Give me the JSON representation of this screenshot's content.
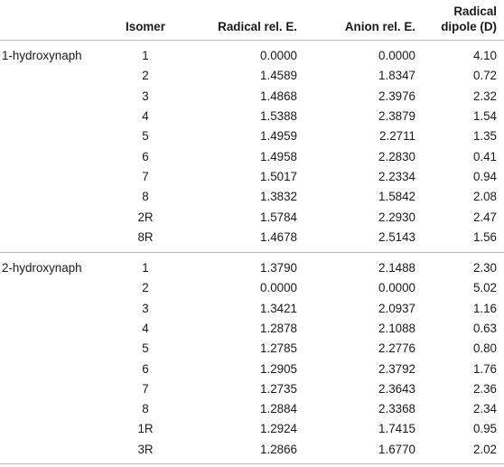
{
  "headers": {
    "name": "",
    "isomer": "Isomer",
    "radical_rel_e": "Radical rel. E.",
    "anion_rel_e": "Anion rel. E.",
    "radical_dipole_line1": "Radical",
    "radical_dipole_line2": "dipole (D)"
  },
  "groups": [
    {
      "name": "1-hydroxynaph",
      "rows": [
        {
          "isomer": "1",
          "radical": "0.0000",
          "anion": "0.0000",
          "dipole": "4.10"
        },
        {
          "isomer": "2",
          "radical": "1.4589",
          "anion": "1.8347",
          "dipole": "0.72"
        },
        {
          "isomer": "3",
          "radical": "1.4868",
          "anion": "2.3976",
          "dipole": "2.32"
        },
        {
          "isomer": "4",
          "radical": "1.5388",
          "anion": "2.3879",
          "dipole": "1.54"
        },
        {
          "isomer": "5",
          "radical": "1.4959",
          "anion": "2.2711",
          "dipole": "1.35"
        },
        {
          "isomer": "6",
          "radical": "1.4958",
          "anion": "2.2830",
          "dipole": "0.41"
        },
        {
          "isomer": "7",
          "radical": "1.5017",
          "anion": "2.2334",
          "dipole": "0.94"
        },
        {
          "isomer": "8",
          "radical": "1.3832",
          "anion": "1.5842",
          "dipole": "2.08"
        },
        {
          "isomer": "2R",
          "radical": "1.5784",
          "anion": "2.2930",
          "dipole": "2.47"
        },
        {
          "isomer": "8R",
          "radical": "1.4678",
          "anion": "2.5143",
          "dipole": "1.56"
        }
      ]
    },
    {
      "name": "2-hydroxynaph",
      "rows": [
        {
          "isomer": "1",
          "radical": "1.3790",
          "anion": "2.1488",
          "dipole": "2.30"
        },
        {
          "isomer": "2",
          "radical": "0.0000",
          "anion": "0.0000",
          "dipole": "5.02"
        },
        {
          "isomer": "3",
          "radical": "1.3421",
          "anion": "2.0937",
          "dipole": "1.16"
        },
        {
          "isomer": "4",
          "radical": "1.2878",
          "anion": "2.1088",
          "dipole": "0.63"
        },
        {
          "isomer": "5",
          "radical": "1.2785",
          "anion": "2.2776",
          "dipole": "0.80"
        },
        {
          "isomer": "6",
          "radical": "1.2905",
          "anion": "2.3792",
          "dipole": "1.76"
        },
        {
          "isomer": "7",
          "radical": "1.2735",
          "anion": "2.3643",
          "dipole": "2.36"
        },
        {
          "isomer": "8",
          "radical": "1.2884",
          "anion": "2.3368",
          "dipole": "2.34"
        },
        {
          "isomer": "1R",
          "radical": "1.2924",
          "anion": "1.7415",
          "dipole": "0.95"
        },
        {
          "isomer": "3R",
          "radical": "1.2866",
          "anion": "1.6770",
          "dipole": "2.02"
        }
      ]
    }
  ]
}
